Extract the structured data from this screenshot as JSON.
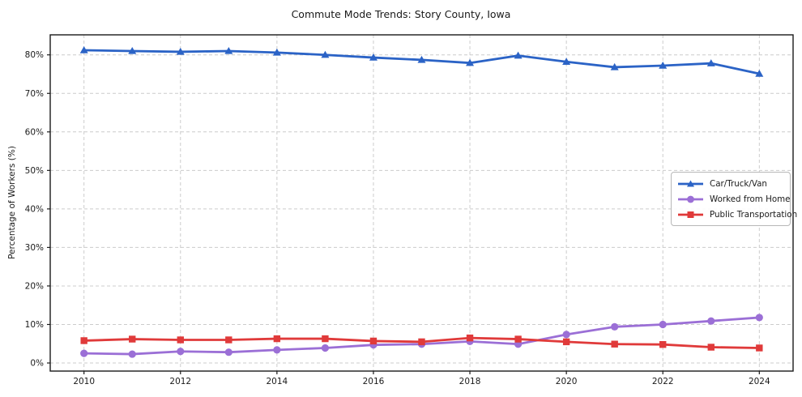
{
  "title": "Commute Mode Trends: Story County, Iowa",
  "chart_data": {
    "type": "line",
    "title": "Commute Mode Trends: Story County, Iowa",
    "xlabel": "",
    "ylabel": "Percentage of Workers (%)",
    "x": [
      2010,
      2011,
      2012,
      2013,
      2014,
      2015,
      2016,
      2017,
      2018,
      2019,
      2020,
      2021,
      2022,
      2023,
      2024
    ],
    "x_tick_labels": [
      "2010",
      "2012",
      "2014",
      "2016",
      "2018",
      "2020",
      "2022",
      "2024"
    ],
    "x_ticks": [
      2010,
      2012,
      2014,
      2016,
      2018,
      2020,
      2022,
      2024
    ],
    "y_tick_labels": [
      "0%",
      "10%",
      "20%",
      "30%",
      "40%",
      "50%",
      "60%",
      "70%",
      "80%"
    ],
    "y_ticks": [
      0,
      10,
      20,
      30,
      40,
      50,
      60,
      70,
      80
    ],
    "ylim": [
      -2.1,
      85.2
    ],
    "xlim": [
      2009.3,
      2024.7
    ],
    "grid": true,
    "grid_style": "dashed",
    "legend_position": "center right",
    "series": [
      {
        "name": "Car/Truck/Van",
        "color": "#2b63c6",
        "marker": "triangle",
        "values": [
          81.2,
          81.0,
          80.8,
          81.0,
          80.6,
          80.0,
          79.3,
          78.7,
          77.9,
          79.8,
          78.2,
          76.8,
          77.2,
          77.8,
          75.1
        ]
      },
      {
        "name": "Worked from Home",
        "color": "#9b6fd6",
        "marker": "circle",
        "values": [
          2.5,
          2.3,
          3.0,
          2.8,
          3.4,
          3.9,
          4.7,
          4.9,
          5.6,
          4.9,
          7.4,
          9.4,
          10.0,
          10.9,
          11.8
        ]
      },
      {
        "name": "Public Transportation",
        "color": "#e03a3a",
        "marker": "square",
        "values": [
          5.8,
          6.2,
          6.0,
          6.0,
          6.3,
          6.3,
          5.7,
          5.5,
          6.5,
          6.2,
          5.5,
          4.9,
          4.8,
          4.1,
          3.9
        ]
      }
    ]
  },
  "style": {
    "grid_color": "#cccccc",
    "spine_color": "#1a1a1a",
    "background": "#ffffff"
  }
}
